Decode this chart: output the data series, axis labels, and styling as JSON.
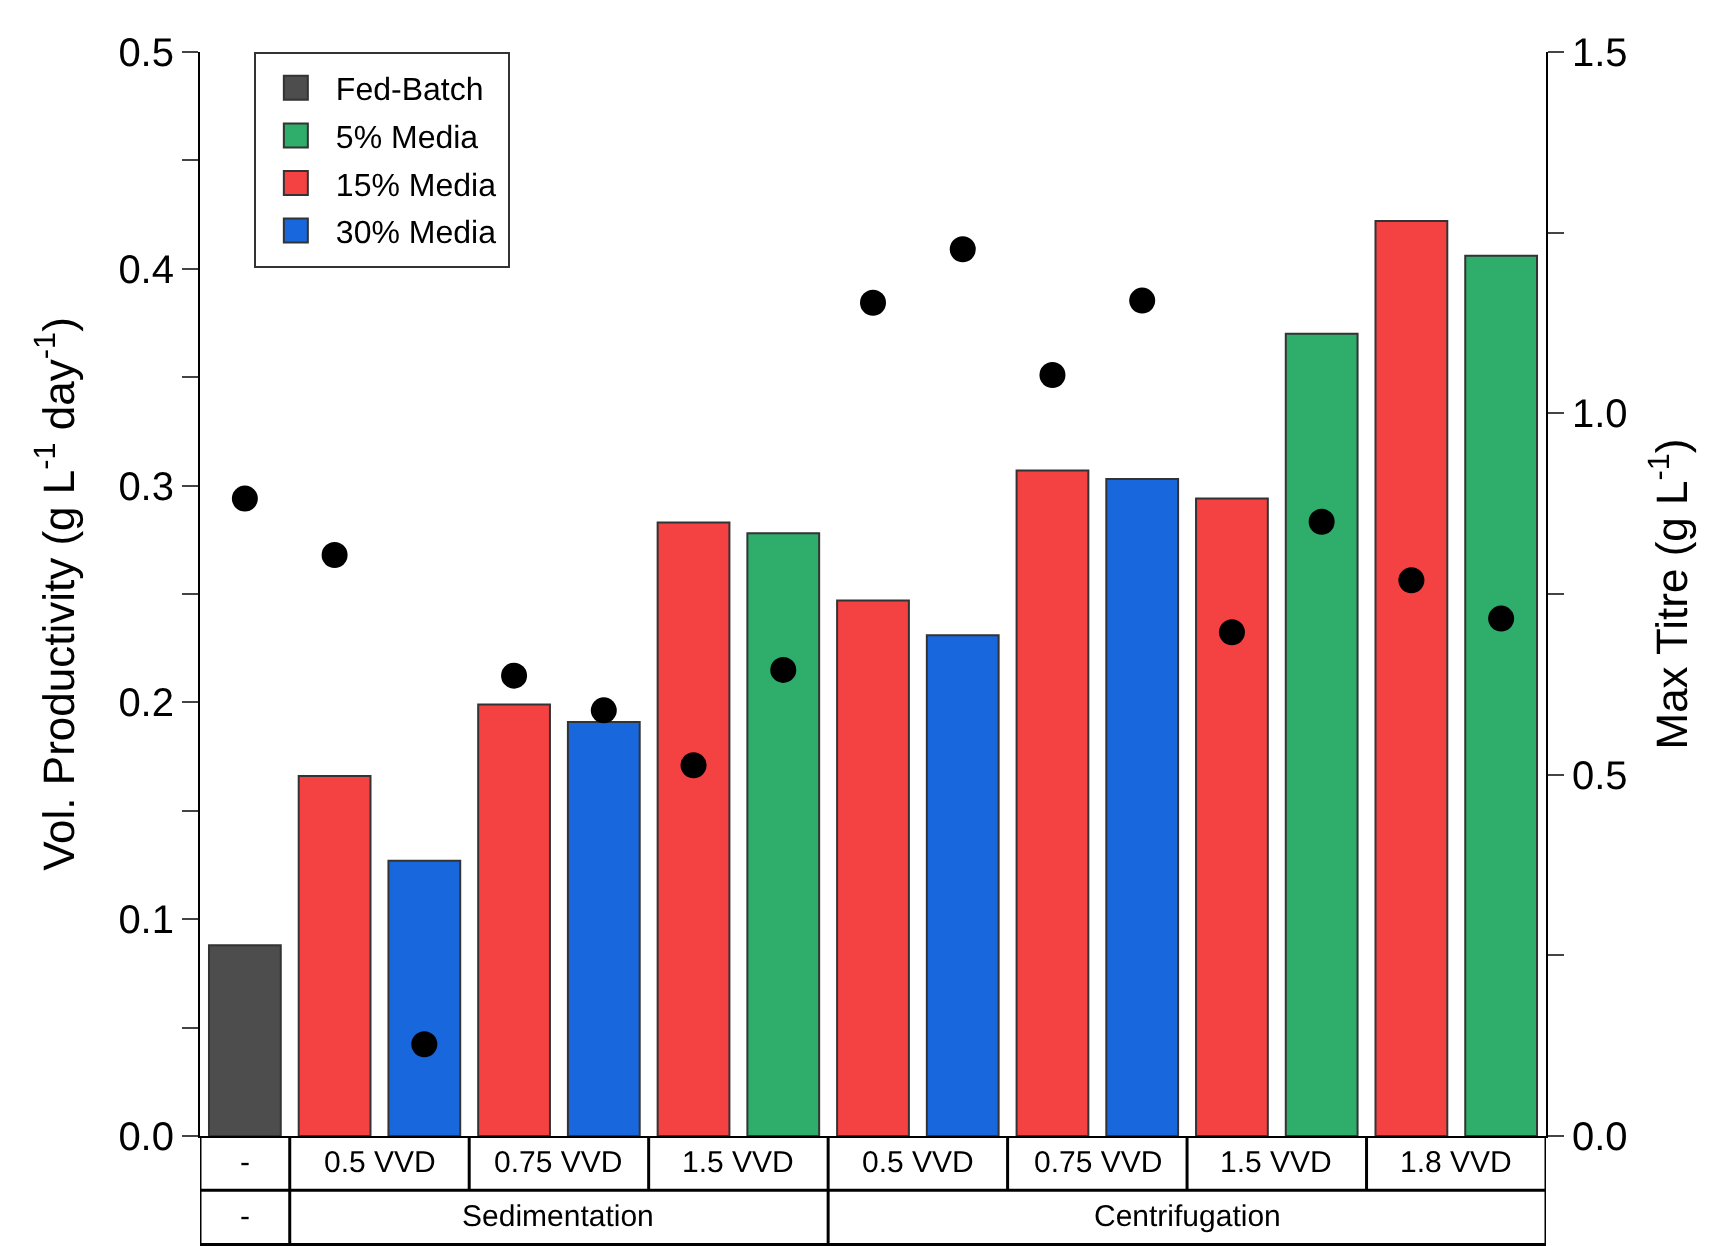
{
  "chart_data": {
    "type": "bar",
    "categories": [
      null,
      null,
      null,
      null,
      null,
      null,
      null,
      null,
      null,
      null,
      null,
      null,
      null,
      null,
      null
    ],
    "series": [
      {
        "name": "Fed-Batch",
        "color": "#4d4d4d",
        "values": [
          0.088,
          null,
          null,
          null,
          null,
          null,
          null,
          null,
          null,
          null,
          null,
          null,
          null,
          null,
          null
        ]
      },
      {
        "name": "5% Media",
        "color": "#2fad6a",
        "values": [
          null,
          null,
          null,
          null,
          null,
          null,
          0.278,
          null,
          null,
          null,
          null,
          null,
          0.37,
          null,
          0.406
        ]
      },
      {
        "name": "15% Media",
        "color": "#f44142",
        "values": [
          null,
          0.166,
          null,
          0.199,
          null,
          0.283,
          null,
          0.247,
          null,
          0.307,
          null,
          0.294,
          null,
          0.422,
          null
        ]
      },
      {
        "name": "30% Media",
        "color": "#1967dc",
        "values": [
          null,
          null,
          0.127,
          null,
          0.191,
          null,
          null,
          null,
          0.231,
          null,
          0.303,
          null,
          null,
          null,
          null
        ]
      },
      {
        "type": "scatter",
        "axis": "y2",
        "color": "#000000",
        "marker": "circle",
        "values": [
          0.882,
          0.804,
          0.127,
          0.637,
          0.589,
          0.513,
          0.645,
          1.153,
          1.227,
          1.053,
          1.156,
          0.697,
          0.85,
          0.769,
          0.716
        ]
      }
    ],
    "annotations": [
      "-",
      "0.5 VVD",
      "0.75 VVD",
      "1.5 VVD",
      "0.5 VVD",
      "0.75 VVD",
      "1.5 VVD",
      "1.8 VVD",
      "-",
      "Sedimentation",
      "Centrifugation"
    ],
    "ylabel": "Vol. Productivity (g L$^{-1}$ day$^{-1}$)",
    "y2label": "Max Titre (g L$^{-1}$)",
    "ylim": [
      0,
      0.5
    ],
    "yticks": [
      {
        "value": 0,
        "label": "0.0"
      },
      {
        "value": 0.05,
        "label": null
      },
      0.1,
      {
        "value": 0.15,
        "label": null
      },
      0.2,
      {
        "value": 0.25,
        "label": null
      },
      0.3,
      {
        "value": 0.35,
        "label": null
      },
      0.4,
      {
        "value": 0.45,
        "label": null
      },
      0.5
    ],
    "y2lim": [
      0,
      1.5
    ],
    "y2ticks": [
      {
        "value": 0,
        "label": "0.0"
      },
      {
        "value": 0.25,
        "label": null
      },
      0.5,
      {
        "value": 0.75,
        "label": null
      },
      {
        "value": 1,
        "label": "1.0"
      },
      {
        "value": 1.25,
        "label": null
      },
      1.5
    ],
    "legend": "top left"
  }
}
